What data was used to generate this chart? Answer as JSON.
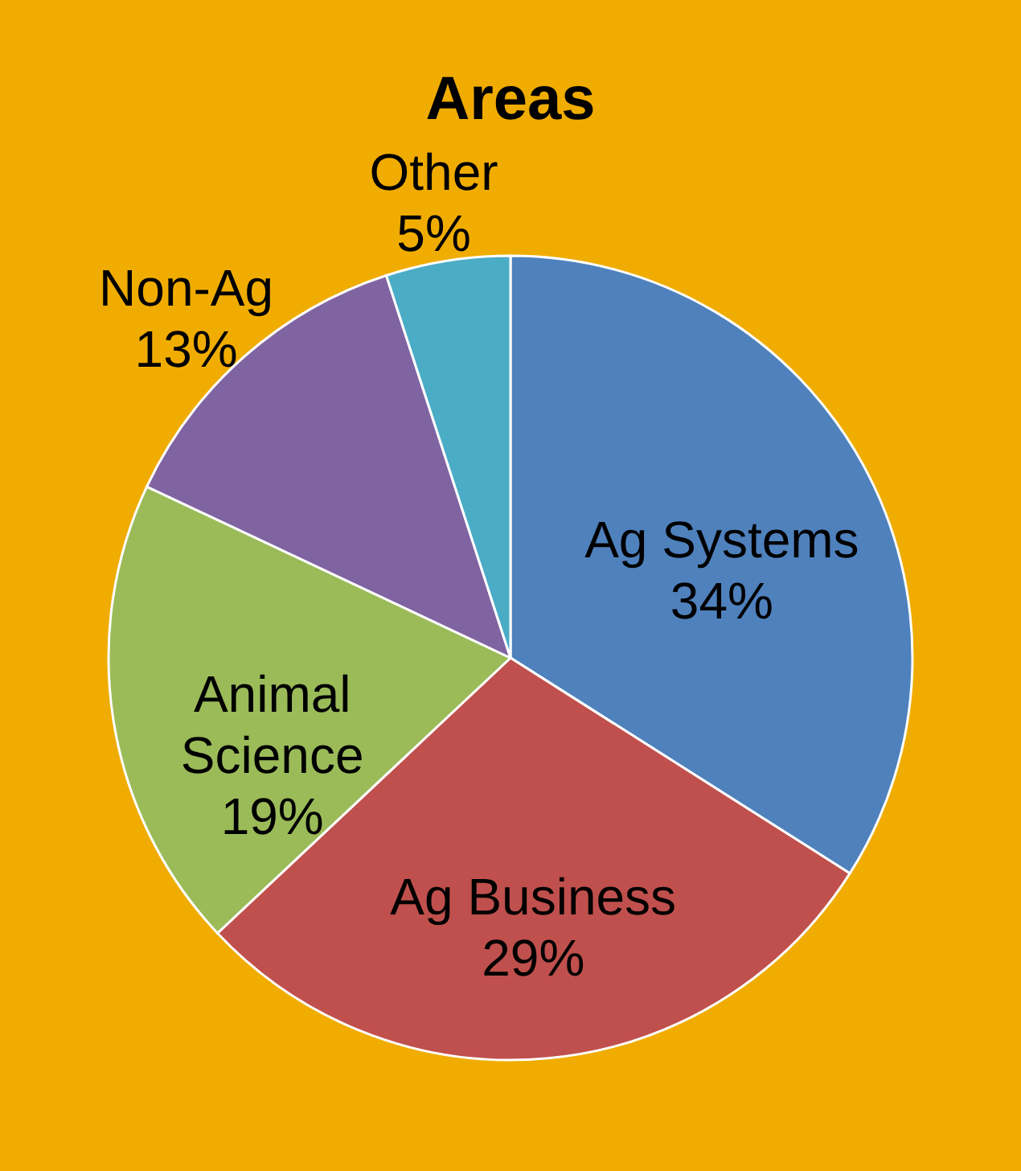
{
  "chart_data": {
    "type": "pie",
    "title": "Areas",
    "categories": [
      "Ag Systems",
      "Ag Business",
      "Animal Science",
      "Non-Ag",
      "Other"
    ],
    "values": [
      34,
      29,
      19,
      13,
      5
    ],
    "value_labels": [
      "34%",
      "29%",
      "19%",
      "13%",
      "5%"
    ],
    "colors": [
      "#4f81bd",
      "#c0504d",
      "#9bbb59",
      "#8064a2",
      "#4bacc6"
    ],
    "legend": false
  }
}
